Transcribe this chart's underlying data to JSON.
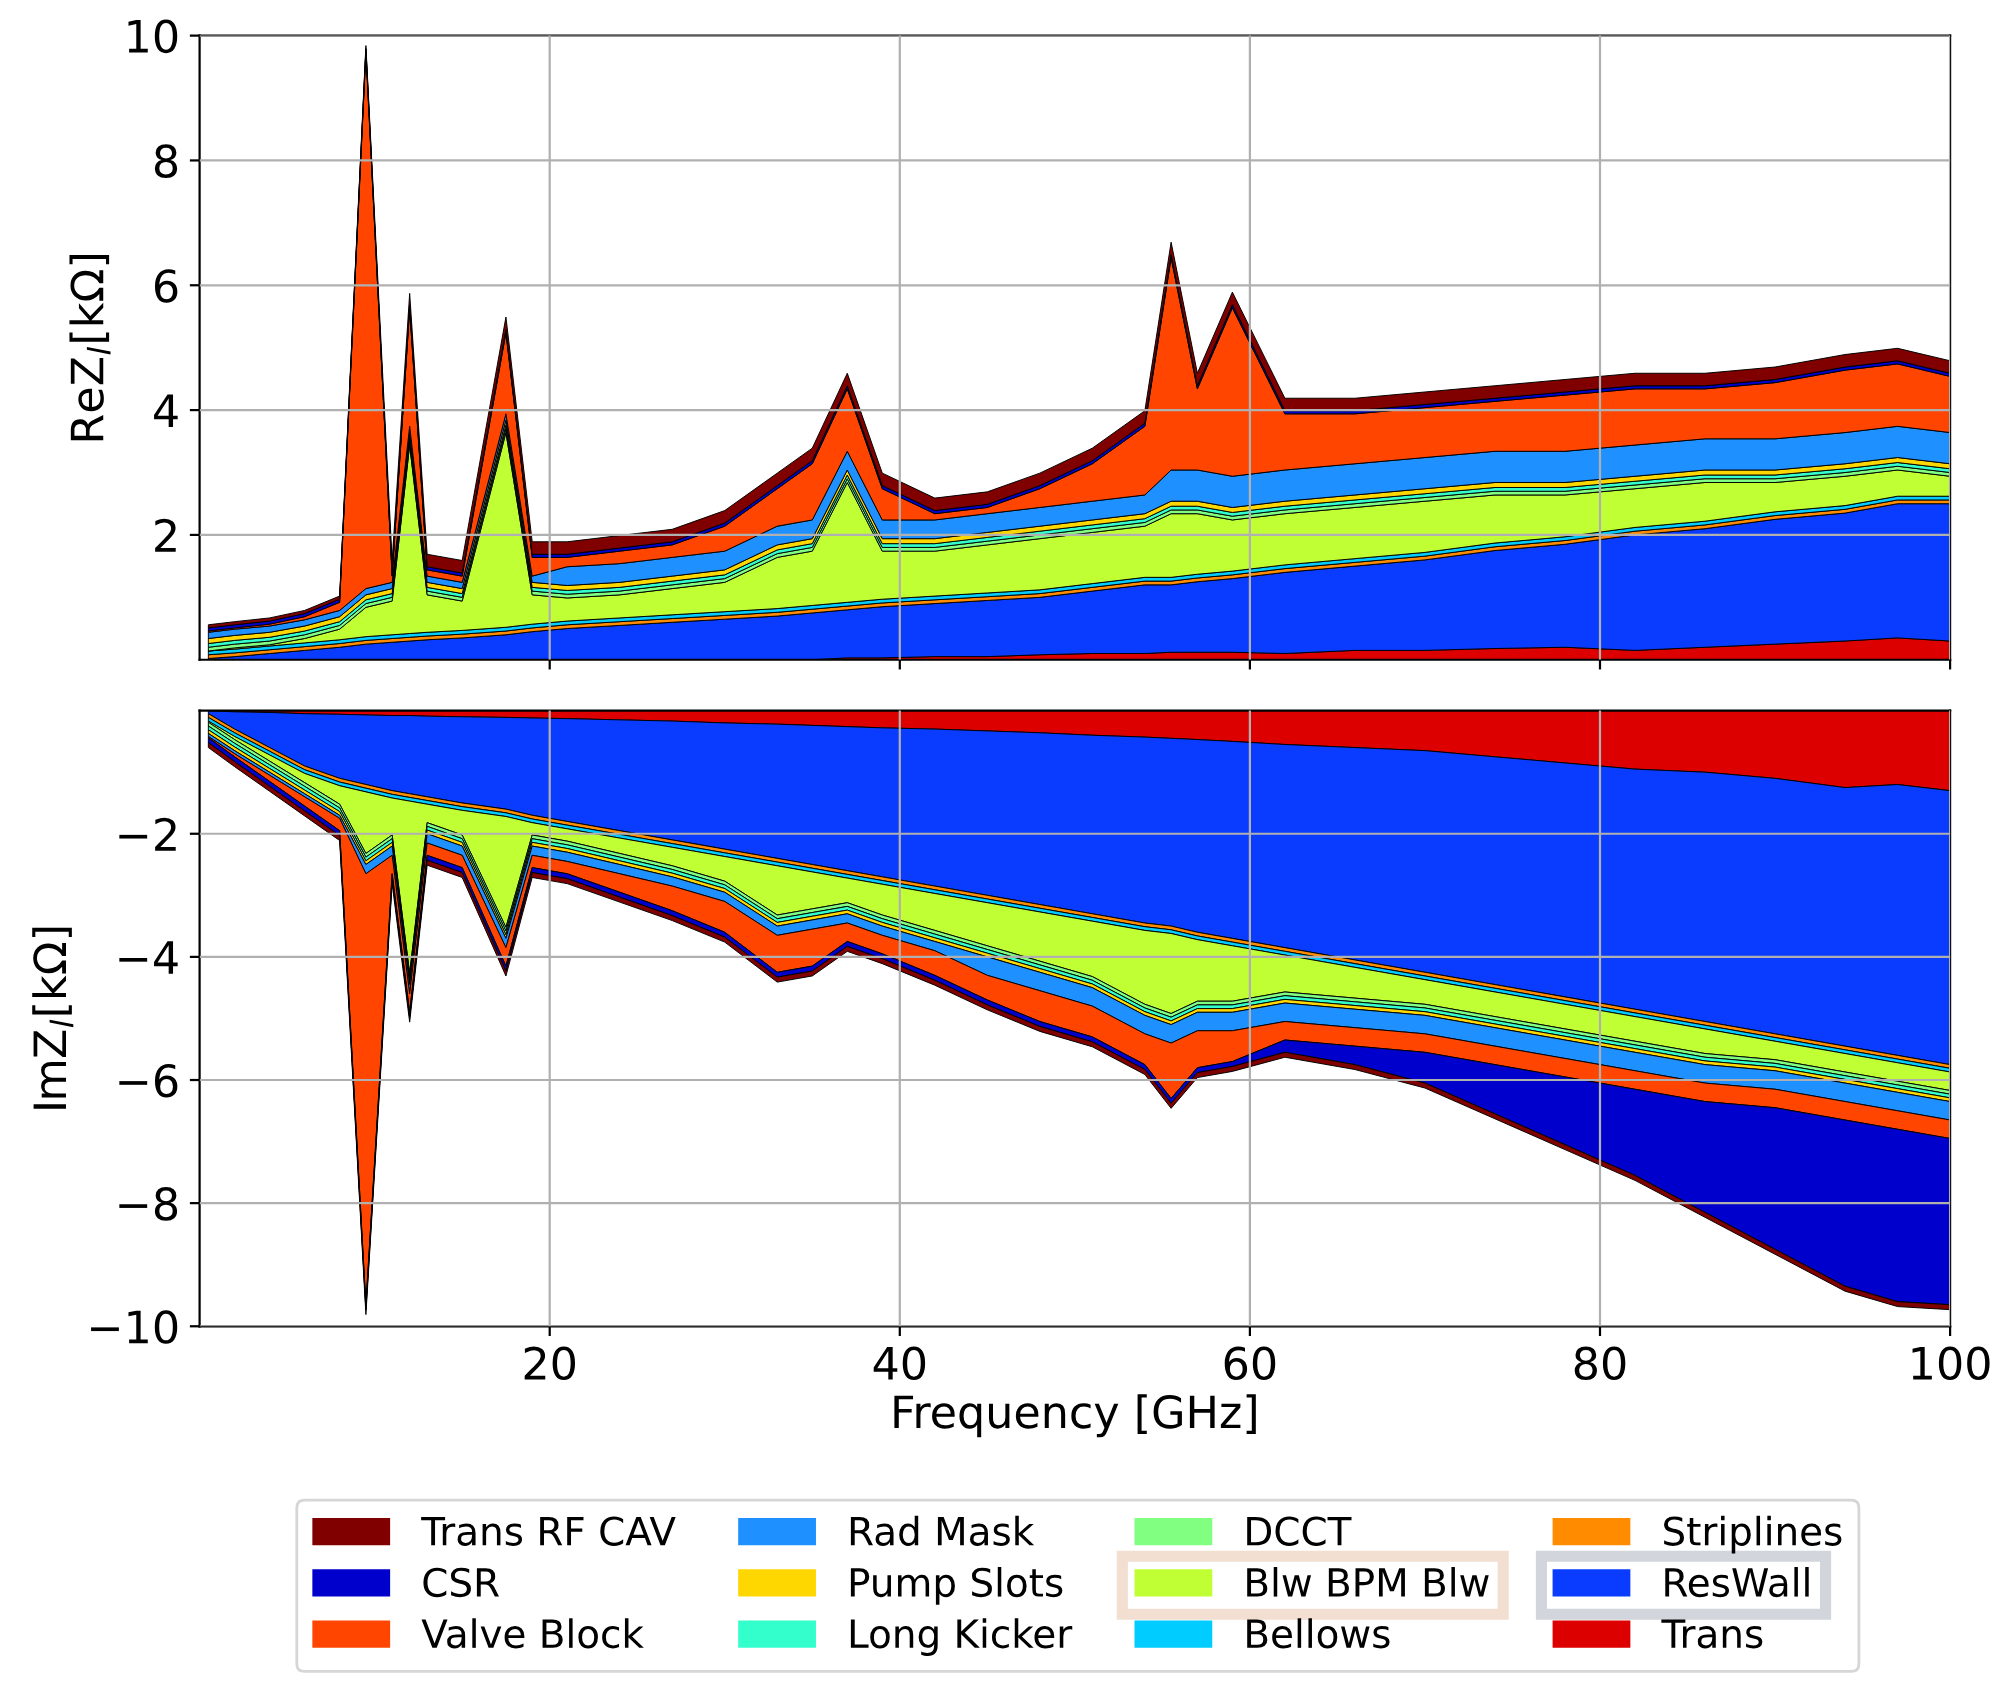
{
  "chart_data": [
    {
      "type": "area",
      "stacked": true,
      "ylabel": "ReZ$_{l}$[kΩ]",
      "xlim": [
        0,
        100
      ],
      "xticks": [
        20,
        40,
        60,
        80,
        100
      ],
      "ylim": [
        0,
        10
      ],
      "yticks": [
        2,
        4,
        6,
        8,
        10
      ],
      "grid": true,
      "tick_labels": "y",
      "legend": "bottom",
      "x": [
        0.5,
        2,
        4,
        6,
        8,
        9.5,
        11,
        12,
        13,
        15,
        17.5,
        19,
        21,
        24,
        27,
        30,
        33,
        35,
        37,
        39,
        42,
        45,
        48,
        51,
        54,
        55.5,
        57,
        59,
        62,
        66,
        70,
        74,
        78,
        82,
        86,
        90,
        94,
        97,
        100
      ],
      "series": [
        {
          "name": "Trans",
          "color": "#dd0000",
          "values": [
            0,
            0,
            0,
            0,
            0,
            0,
            0,
            0,
            0,
            0,
            0,
            0,
            0,
            0,
            0,
            0,
            0,
            0,
            0.03,
            0.03,
            0.05,
            0.05,
            0.08,
            0.1,
            0.1,
            0.12,
            0.12,
            0.12,
            0.1,
            0.15,
            0.15,
            0.18,
            0.2,
            0.15,
            0.2,
            0.25,
            0.3,
            0.35,
            0.3
          ]
        },
        {
          "name": "ResWall",
          "color": "#0a3cff",
          "values": [
            0.02,
            0.05,
            0.1,
            0.15,
            0.2,
            0.25,
            0.28,
            0.3,
            0.32,
            0.35,
            0.4,
            0.45,
            0.5,
            0.55,
            0.6,
            0.65,
            0.7,
            0.75,
            0.77,
            0.82,
            0.85,
            0.9,
            0.92,
            1.0,
            1.1,
            1.08,
            1.13,
            1.18,
            1.3,
            1.35,
            1.45,
            1.57,
            1.65,
            1.85,
            1.9,
            2.0,
            2.05,
            2.15,
            2.2
          ]
        },
        {
          "name": "Striplines",
          "color": "#ff8c00",
          "values": [
            0.06,
            0.06,
            0.06,
            0.06,
            0.06,
            0.06,
            0.06,
            0.06,
            0.06,
            0.06,
            0.06,
            0.06,
            0.06,
            0.06,
            0.06,
            0.06,
            0.06,
            0.06,
            0.06,
            0.06,
            0.06,
            0.06,
            0.06,
            0.06,
            0.06,
            0.06,
            0.06,
            0.06,
            0.06,
            0.06,
            0.06,
            0.06,
            0.06,
            0.06,
            0.06,
            0.06,
            0.06,
            0.06,
            0.06
          ]
        },
        {
          "name": "Bellows",
          "color": "#00ccff",
          "values": [
            0.06,
            0.06,
            0.06,
            0.06,
            0.06,
            0.06,
            0.06,
            0.06,
            0.06,
            0.06,
            0.06,
            0.06,
            0.06,
            0.06,
            0.06,
            0.06,
            0.06,
            0.06,
            0.06,
            0.06,
            0.06,
            0.06,
            0.06,
            0.06,
            0.06,
            0.06,
            0.06,
            0.06,
            0.06,
            0.06,
            0.06,
            0.06,
            0.06,
            0.06,
            0.06,
            0.06,
            0.06,
            0.06,
            0.06
          ]
        },
        {
          "name": "Blw BPM Blw",
          "color": "#c0ff33",
          "values": [
            0,
            0.02,
            0.02,
            0.07,
            0.17,
            0.47,
            0.54,
            3.02,
            0.6,
            0.47,
            3.12,
            0.47,
            0.37,
            0.37,
            0.42,
            0.47,
            0.82,
            0.87,
            1.92,
            0.77,
            0.72,
            0.77,
            0.82,
            0.82,
            0.82,
            1.02,
            0.97,
            0.82,
            0.82,
            0.82,
            0.82,
            0.77,
            0.67,
            0.62,
            0.62,
            0.47,
            0.47,
            0.42,
            0.32
          ]
        },
        {
          "name": "DCCT",
          "color": "#80ff80",
          "values": [
            0.06,
            0.06,
            0.06,
            0.06,
            0.06,
            0.06,
            0.06,
            0.06,
            0.06,
            0.06,
            0.06,
            0.06,
            0.06,
            0.06,
            0.06,
            0.06,
            0.06,
            0.06,
            0.06,
            0.06,
            0.06,
            0.06,
            0.06,
            0.06,
            0.06,
            0.06,
            0.06,
            0.06,
            0.06,
            0.06,
            0.06,
            0.06,
            0.06,
            0.06,
            0.06,
            0.06,
            0.06,
            0.06,
            0.06
          ]
        },
        {
          "name": "Long Kicker",
          "color": "#33ffcc",
          "values": [
            0.06,
            0.06,
            0.06,
            0.06,
            0.06,
            0.06,
            0.06,
            0.06,
            0.06,
            0.06,
            0.06,
            0.06,
            0.06,
            0.06,
            0.06,
            0.06,
            0.06,
            0.06,
            0.06,
            0.06,
            0.06,
            0.06,
            0.06,
            0.06,
            0.06,
            0.06,
            0.06,
            0.06,
            0.06,
            0.06,
            0.06,
            0.06,
            0.06,
            0.06,
            0.06,
            0.06,
            0.06,
            0.06,
            0.06
          ]
        },
        {
          "name": "Pump Slots",
          "color": "#ffd700",
          "values": [
            0.08,
            0.08,
            0.08,
            0.08,
            0.08,
            0.08,
            0.08,
            0.08,
            0.08,
            0.08,
            0.08,
            0.08,
            0.08,
            0.08,
            0.08,
            0.08,
            0.08,
            0.08,
            0.08,
            0.08,
            0.08,
            0.08,
            0.08,
            0.08,
            0.08,
            0.08,
            0.08,
            0.08,
            0.08,
            0.08,
            0.08,
            0.08,
            0.08,
            0.08,
            0.08,
            0.08,
            0.08,
            0.08,
            0.08
          ]
        },
        {
          "name": "Rad Mask",
          "color": "#1e90ff",
          "values": [
            0.1,
            0.1,
            0.1,
            0.1,
            0.1,
            0.1,
            0.1,
            0.1,
            0.1,
            0.1,
            0.1,
            0.1,
            0.3,
            0.3,
            0.3,
            0.3,
            0.3,
            0.3,
            0.3,
            0.3,
            0.3,
            0.3,
            0.3,
            0.3,
            0.3,
            0.5,
            0.5,
            0.5,
            0.5,
            0.5,
            0.5,
            0.5,
            0.5,
            0.5,
            0.5,
            0.5,
            0.5,
            0.5,
            0.5
          ]
        },
        {
          "name": "Valve Block",
          "color": "#ff4500",
          "values": [
            0.02,
            0.02,
            0.03,
            0.05,
            0.13,
            8.6,
            0.1,
            1.88,
            0.1,
            0.1,
            1.3,
            0.3,
            0.15,
            0.2,
            0.2,
            0.4,
            0.6,
            0.9,
            1.0,
            0.5,
            0.1,
            0.1,
            0.3,
            0.6,
            1.1,
            3.4,
            1.3,
            2.7,
            0.9,
            0.8,
            0.8,
            0.8,
            0.9,
            0.9,
            0.8,
            0.9,
            1.0,
            1.0,
            0.9
          ]
        },
        {
          "name": "CSR",
          "color": "#0000cd",
          "values": [
            0.05,
            0.05,
            0.05,
            0.05,
            0.05,
            0.05,
            0.05,
            0.05,
            0.05,
            0.05,
            0.05,
            0.05,
            0.05,
            0.05,
            0.05,
            0.05,
            0.05,
            0.05,
            0.05,
            0.05,
            0.05,
            0.05,
            0.05,
            0.05,
            0.05,
            0.05,
            0.05,
            0.05,
            0.05,
            0.05,
            0.05,
            0.05,
            0.05,
            0.05,
            0.05,
            0.05,
            0.05,
            0.05,
            0.05
          ]
        },
        {
          "name": "Trans RF CAV",
          "color": "#800000",
          "values": [
            0.05,
            0.05,
            0.05,
            0.05,
            0.05,
            0.05,
            0.2,
            0.2,
            0.2,
            0.2,
            0.2,
            0.2,
            0.2,
            0.2,
            0.2,
            0.2,
            0.2,
            0.2,
            0.2,
            0.2,
            0.2,
            0.2,
            0.2,
            0.2,
            0.2,
            0.2,
            0.2,
            0.2,
            0.2,
            0.2,
            0.2,
            0.2,
            0.2,
            0.2,
            0.2,
            0.2,
            0.2,
            0.2,
            0.2
          ]
        }
      ]
    },
    {
      "type": "area",
      "stacked": true,
      "ylabel": "ImZ$_{l}$[kΩ]",
      "xlabel": "Frequency [GHz]",
      "xlim": [
        0,
        100
      ],
      "xticks": [
        20,
        40,
        60,
        80,
        100
      ],
      "ylim": [
        -10,
        0
      ],
      "yticks": [
        -2,
        -4,
        -6,
        -8,
        -10
      ],
      "grid": true,
      "legend": "bottom",
      "x": [
        0.5,
        2,
        4,
        6,
        8,
        9.5,
        11,
        12,
        13,
        15,
        17.5,
        19,
        21,
        24,
        27,
        30,
        33,
        35,
        37,
        39,
        42,
        45,
        48,
        51,
        54,
        55.5,
        57,
        59,
        62,
        66,
        70,
        74,
        78,
        82,
        86,
        90,
        94,
        97,
        100
      ],
      "series": [
        {
          "name": "Trans",
          "color": "#dd0000",
          "values": [
            0,
            -0.02,
            -0.03,
            -0.05,
            -0.06,
            -0.07,
            -0.08,
            -0.08,
            -0.09,
            -0.1,
            -0.11,
            -0.12,
            -0.13,
            -0.15,
            -0.17,
            -0.2,
            -0.22,
            -0.24,
            -0.26,
            -0.28,
            -0.3,
            -0.33,
            -0.36,
            -0.4,
            -0.43,
            -0.45,
            -0.47,
            -0.5,
            -0.55,
            -0.6,
            -0.65,
            -0.75,
            -0.85,
            -0.95,
            -1.0,
            -1.1,
            -1.25,
            -1.2,
            -1.3
          ]
        },
        {
          "name": "ResWall",
          "color": "#0a3cff",
          "values": [
            -0.05,
            -0.28,
            -0.57,
            -0.85,
            -1.04,
            -1.13,
            -1.22,
            -1.27,
            -1.31,
            -1.4,
            -1.49,
            -1.58,
            -1.67,
            -1.8,
            -1.93,
            -2.05,
            -2.18,
            -2.26,
            -2.34,
            -2.42,
            -2.55,
            -2.67,
            -2.79,
            -2.9,
            -3.02,
            -3.05,
            -3.13,
            -3.2,
            -3.3,
            -3.45,
            -3.6,
            -3.7,
            -3.8,
            -3.9,
            -4.05,
            -4.15,
            -4.2,
            -4.4,
            -4.45
          ]
        },
        {
          "name": "Striplines",
          "color": "#ff8c00",
          "values": [
            -0.06,
            -0.06,
            -0.06,
            -0.06,
            -0.06,
            -0.06,
            -0.06,
            -0.06,
            -0.06,
            -0.06,
            -0.06,
            -0.06,
            -0.06,
            -0.06,
            -0.06,
            -0.06,
            -0.06,
            -0.06,
            -0.06,
            -0.06,
            -0.06,
            -0.06,
            -0.06,
            -0.06,
            -0.06,
            -0.06,
            -0.06,
            -0.06,
            -0.06,
            -0.06,
            -0.06,
            -0.06,
            -0.06,
            -0.06,
            -0.06,
            -0.06,
            -0.06,
            -0.06,
            -0.06
          ]
        },
        {
          "name": "Bellows",
          "color": "#00ccff",
          "values": [
            -0.06,
            -0.06,
            -0.06,
            -0.06,
            -0.06,
            -0.06,
            -0.06,
            -0.06,
            -0.06,
            -0.06,
            -0.06,
            -0.06,
            -0.06,
            -0.06,
            -0.06,
            -0.06,
            -0.06,
            -0.06,
            -0.06,
            -0.06,
            -0.06,
            -0.06,
            -0.06,
            -0.06,
            -0.06,
            -0.06,
            -0.06,
            -0.06,
            -0.06,
            -0.06,
            -0.06,
            -0.06,
            -0.06,
            -0.06,
            -0.06,
            -0.06,
            -0.06,
            -0.06,
            -0.06
          ]
        },
        {
          "name": "Blw BPM Blw",
          "color": "#c0ff33",
          "values": [
            -0.02,
            -0.05,
            -0.1,
            -0.15,
            -0.3,
            -1.0,
            -0.6,
            -2.8,
            -0.3,
            -0.4,
            -1.8,
            -0.2,
            -0.2,
            -0.25,
            -0.3,
            -0.4,
            -0.8,
            -0.6,
            -0.4,
            -0.5,
            -0.6,
            -0.7,
            -0.8,
            -0.9,
            -1.2,
            -1.3,
            -1.0,
            -0.9,
            -0.6,
            -0.5,
            -0.4,
            -0.4,
            -0.4,
            -0.4,
            -0.4,
            -0.3,
            -0.3,
            -0.3,
            -0.3
          ]
        },
        {
          "name": "DCCT",
          "color": "#80ff80",
          "values": [
            -0.06,
            -0.06,
            -0.06,
            -0.06,
            -0.06,
            -0.06,
            -0.06,
            -0.06,
            -0.06,
            -0.06,
            -0.06,
            -0.06,
            -0.06,
            -0.06,
            -0.06,
            -0.06,
            -0.06,
            -0.06,
            -0.06,
            -0.06,
            -0.06,
            -0.06,
            -0.06,
            -0.06,
            -0.06,
            -0.06,
            -0.06,
            -0.06,
            -0.06,
            -0.06,
            -0.06,
            -0.06,
            -0.06,
            -0.06,
            -0.06,
            -0.06,
            -0.06,
            -0.06,
            -0.06
          ]
        },
        {
          "name": "Long Kicker",
          "color": "#33ffcc",
          "values": [
            -0.06,
            -0.06,
            -0.06,
            -0.06,
            -0.06,
            -0.06,
            -0.06,
            -0.06,
            -0.06,
            -0.06,
            -0.06,
            -0.06,
            -0.06,
            -0.06,
            -0.06,
            -0.06,
            -0.06,
            -0.06,
            -0.06,
            -0.06,
            -0.06,
            -0.06,
            -0.06,
            -0.06,
            -0.06,
            -0.06,
            -0.06,
            -0.06,
            -0.06,
            -0.06,
            -0.06,
            -0.06,
            -0.06,
            -0.06,
            -0.06,
            -0.06,
            -0.06,
            -0.06,
            -0.06
          ]
        },
        {
          "name": "Pump Slots",
          "color": "#ffd700",
          "values": [
            -0.06,
            -0.06,
            -0.06,
            -0.06,
            -0.06,
            -0.06,
            -0.06,
            -0.06,
            -0.06,
            -0.06,
            -0.06,
            -0.06,
            -0.06,
            -0.06,
            -0.06,
            -0.06,
            -0.06,
            -0.06,
            -0.06,
            -0.06,
            -0.06,
            -0.06,
            -0.06,
            -0.06,
            -0.06,
            -0.06,
            -0.06,
            -0.06,
            -0.06,
            -0.06,
            -0.06,
            -0.06,
            -0.06,
            -0.06,
            -0.06,
            -0.06,
            -0.06,
            -0.06,
            -0.06
          ]
        },
        {
          "name": "Rad Mask",
          "color": "#1e90ff",
          "values": [
            -0.05,
            -0.05,
            -0.05,
            -0.05,
            -0.05,
            -0.15,
            -0.15,
            -0.15,
            -0.15,
            -0.15,
            -0.15,
            -0.15,
            -0.15,
            -0.15,
            -0.15,
            -0.15,
            -0.15,
            -0.15,
            -0.15,
            -0.15,
            -0.15,
            -0.3,
            -0.3,
            -0.3,
            -0.3,
            -0.3,
            -0.3,
            -0.3,
            -0.3,
            -0.3,
            -0.3,
            -0.3,
            -0.3,
            -0.3,
            -0.3,
            -0.3,
            -0.3,
            -0.3,
            -0.3
          ]
        },
        {
          "name": "Valve Block",
          "color": "#ff4500",
          "values": [
            -0.02,
            -0.05,
            -0.1,
            -0.15,
            -0.2,
            -7.0,
            -0.3,
            -0.3,
            -0.2,
            -0.2,
            -0.3,
            -0.2,
            -0.2,
            -0.3,
            -0.4,
            -0.5,
            -0.6,
            -0.6,
            -0.3,
            -0.3,
            -0.4,
            -0.4,
            -0.5,
            -0.5,
            -0.5,
            -0.9,
            -0.6,
            -0.5,
            -0.3,
            -0.3,
            -0.3,
            -0.3,
            -0.3,
            -0.3,
            -0.3,
            -0.3,
            -0.3,
            -0.3,
            -0.3
          ]
        },
        {
          "name": "CSR",
          "color": "#0000cd",
          "values": [
            -0.08,
            -0.08,
            -0.08,
            -0.08,
            -0.08,
            -0.08,
            -0.08,
            -0.08,
            -0.08,
            -0.08,
            -0.08,
            -0.08,
            -0.08,
            -0.08,
            -0.08,
            -0.08,
            -0.08,
            -0.08,
            -0.08,
            -0.08,
            -0.08,
            -0.08,
            -0.08,
            -0.08,
            -0.08,
            -0.08,
            -0.08,
            -0.08,
            -0.2,
            -0.3,
            -0.5,
            -0.8,
            -1.1,
            -1.4,
            -1.8,
            -2.3,
            -2.7,
            -2.8,
            -2.7
          ]
        },
        {
          "name": "Trans RF CAV",
          "color": "#800000",
          "values": [
            -0.08,
            -0.08,
            -0.08,
            -0.08,
            -0.08,
            -0.08,
            -0.08,
            -0.08,
            -0.08,
            -0.08,
            -0.08,
            -0.08,
            -0.08,
            -0.08,
            -0.08,
            -0.08,
            -0.08,
            -0.08,
            -0.08,
            -0.08,
            -0.08,
            -0.08,
            -0.08,
            -0.08,
            -0.08,
            -0.08,
            -0.08,
            -0.08,
            -0.08,
            -0.08,
            -0.08,
            -0.08,
            -0.08,
            -0.08,
            -0.08,
            -0.08,
            -0.08,
            -0.08,
            -0.08
          ]
        }
      ]
    }
  ]
}
